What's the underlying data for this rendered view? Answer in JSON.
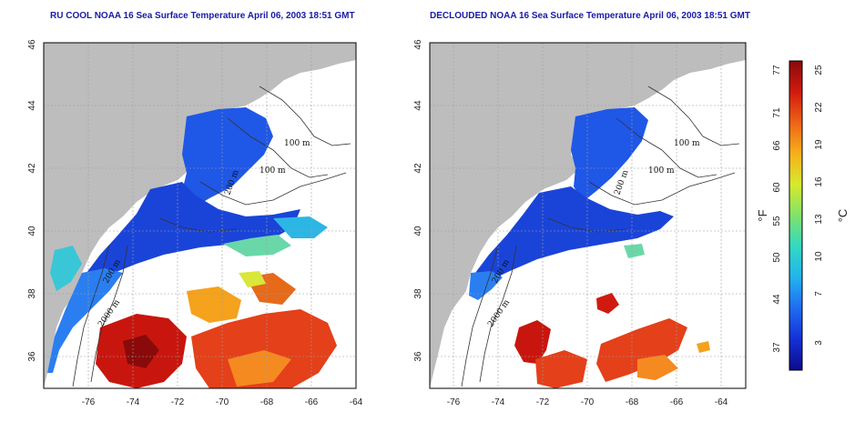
{
  "left_map": {
    "title": "RU COOL NOAA 16 Sea Surface Temperature April 06, 2003 18:51 GMT",
    "contours": [
      "100 m",
      "100 m",
      "200 m",
      "200 m",
      "2000 m"
    ]
  },
  "right_map": {
    "title": "DECLOUDED NOAA 16 Sea Surface Temperature April 06, 2003 18:51 GMT",
    "contours": [
      "100 m",
      "100 m",
      "200 m",
      "200 m",
      "2000 m"
    ]
  },
  "axes": {
    "x_ticks": [
      "-76",
      "-74",
      "-72",
      "-70",
      "-68",
      "-66",
      "-64"
    ],
    "y_ticks": [
      "36",
      "38",
      "40",
      "42",
      "44",
      "46"
    ],
    "x_range": [
      -77,
      -63
    ],
    "y_range": [
      35,
      46
    ]
  },
  "colorbar": {
    "celsius_ticks": [
      "25",
      "22",
      "19",
      "16",
      "13",
      "10",
      "7",
      "3"
    ],
    "fahrenheit_ticks": [
      "77",
      "71",
      "66",
      "60",
      "55",
      "50",
      "44",
      "37"
    ],
    "celsius_unit": "°C",
    "fahrenheit_unit": "°F",
    "colors": [
      "#0b0b8a",
      "#1530d8",
      "#1f6cf2",
      "#22b3ee",
      "#32d9c2",
      "#7fe36a",
      "#d7ea2c",
      "#f6b01c",
      "#ee6416",
      "#d11a0f",
      "#8a0a0a"
    ]
  },
  "colors": {
    "land": "#bdbdbd",
    "title": "#1a1aa6",
    "grid": "#9e9e9e"
  }
}
